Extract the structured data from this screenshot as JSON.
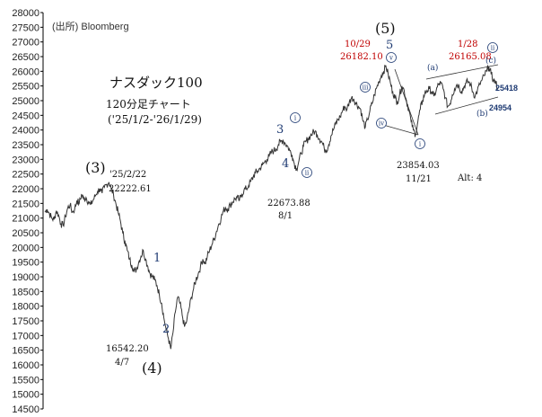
{
  "chart_data": {
    "type": "line",
    "source": "(出所) Bloomberg",
    "title": "ナスダック100",
    "subtitle1": "120分足チャート",
    "subtitle2": "('25/1/2-'26/1/29)",
    "ylim": [
      14500,
      28000
    ],
    "y_ticks": [
      "28000",
      "27500",
      "27000",
      "26500",
      "26000",
      "25500",
      "25000",
      "24500",
      "24000",
      "23500",
      "23000",
      "22500",
      "22000",
      "21500",
      "21000",
      "20500",
      "20000",
      "19500",
      "19000",
      "18500",
      "18000",
      "17500",
      "17000",
      "16500",
      "16000",
      "15500",
      "15000",
      "14500"
    ],
    "y_tick_values": [
      28000,
      27500,
      27000,
      26500,
      26000,
      25500,
      25000,
      24500,
      24000,
      23500,
      23000,
      22500,
      22000,
      21500,
      21000,
      20500,
      20000,
      19500,
      19000,
      18500,
      18000,
      17500,
      17000,
      16500,
      16000,
      15500,
      15000,
      14500
    ],
    "series": [
      {
        "values": [
          21200,
          21300,
          21150,
          21000,
          20950,
          21250,
          21100,
          20800,
          20750,
          21050,
          21350,
          21450,
          21200,
          21300,
          21600,
          21500,
          21800,
          21650,
          21700,
          21550,
          21450,
          21600,
          21750,
          21900,
          22000,
          21850,
          22050,
          22150,
          22222,
          22000,
          21800,
          21500,
          21200,
          20900,
          20500,
          20200,
          19900,
          19600,
          19400,
          19200,
          19250,
          19500,
          19700,
          19900,
          19600,
          19350,
          19100,
          19000,
          18900,
          18700,
          18400,
          18100,
          17600,
          17200,
          16900,
          16542,
          17100,
          17800,
          18300,
          18100,
          17700,
          17300,
          17500,
          17900,
          18300,
          18600,
          18900,
          19100,
          19350,
          19600,
          19450,
          19700,
          19900,
          20100,
          20300,
          20550,
          20800,
          21000,
          21250,
          21350,
          21300,
          21450,
          21550,
          21650,
          21700,
          21600,
          21800,
          21950,
          22000,
          22100,
          22250,
          22400,
          22550,
          22600,
          22700,
          22800,
          22900,
          23000,
          23100,
          23250,
          23300,
          23350,
          23500,
          23600,
          23650,
          23550,
          23450,
          23300,
          23150,
          22850,
          22673,
          22950,
          23200,
          23450,
          23600,
          23700,
          23800,
          23900,
          23950,
          23850,
          23700,
          23600,
          23400,
          23300,
          23500,
          23800,
          24000,
          24200,
          24350,
          24450,
          24650,
          24800,
          24700,
          24950,
          25100,
          25050,
          24900,
          24800,
          24700,
          24300,
          24100,
          24350,
          24650,
          24900,
          25200,
          25450,
          25650,
          25850,
          26000,
          26182,
          25900,
          25600,
          25300,
          25100,
          24950,
          25200,
          25500,
          25350,
          25000,
          24700,
          24300,
          24000,
          23854,
          24300,
          24700,
          25000,
          25250,
          25350,
          25400,
          25300,
          25150,
          25350,
          25550,
          25600,
          25400,
          25100,
          24800,
          24900,
          25200,
          25400,
          25550,
          25500,
          25300,
          25450,
          25600,
          25650,
          25550,
          25300,
          25150,
          25350,
          25550,
          25700,
          25850,
          26000,
          26165,
          25900,
          25700,
          25600,
          25418
        ]
      }
    ],
    "annotations": {
      "w3_label": "(3)",
      "w3_date": "'25/2/22",
      "w3_value": "22222.61",
      "w4_value": "16542.20",
      "w4_date": "4/7",
      "w4_label": "(4)",
      "w1": "1",
      "w2": "2",
      "w3": "3",
      "w4": "4",
      "w4_small_value": "22673.88",
      "w4_small_date": "8/1",
      "w5_label": "(5)",
      "w5": "5",
      "peak_date": "10/29",
      "peak_value": "26182.10",
      "low_value": "23854.03",
      "low_date": "11/21",
      "alt": "Alt: 4",
      "recent_date": "1/28",
      "recent_value": "26165.08",
      "lvl_upper": "25418",
      "lvl_lower": "24954",
      "a": "(a)",
      "b": "(b)",
      "c": "(c)",
      "roman_i": "i",
      "roman_ii": "ii",
      "roman_iii": "iii",
      "roman_iv": "iv",
      "roman_v": "v"
    }
  },
  "colors": {
    "price": "#333333",
    "axis": "#000000",
    "label_blue": "#1f3b73",
    "label_red": "#c00000"
  }
}
